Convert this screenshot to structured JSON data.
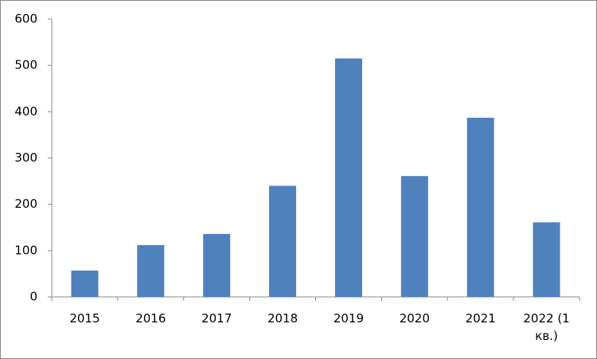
{
  "chart_data": {
    "type": "bar",
    "categories": [
      "2015",
      "2016",
      "2017",
      "2018",
      "2019",
      "2020",
      "2021",
      "2022 (1 кв.)"
    ],
    "values": [
      57,
      112,
      136,
      240,
      515,
      261,
      387,
      161
    ],
    "color": "#4f81bd",
    "ylim": [
      0,
      600
    ],
    "yticks": [
      0,
      100,
      200,
      300,
      400,
      500,
      600
    ],
    "grid": false
  }
}
